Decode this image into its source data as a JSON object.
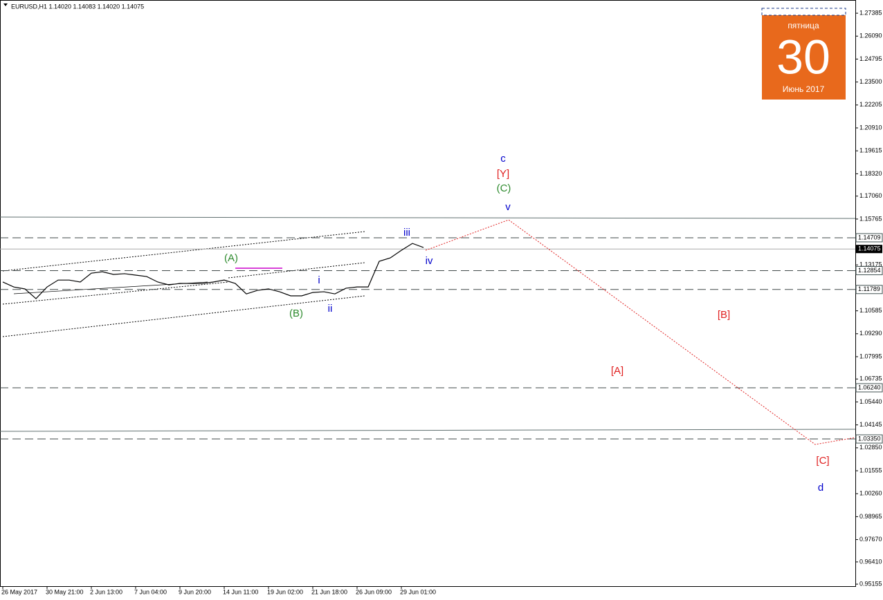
{
  "header": "EURUSD,H1  1.14020 1.14083 1.14020 1.14075",
  "calendar": {
    "weekday": "пятница",
    "day": "30",
    "month": "Июнь 2017"
  },
  "chart_data": {
    "type": "line",
    "categories": [
      "26 May 2017",
      null,
      null,
      null,
      "30 May 21:00",
      null,
      null,
      null,
      "2 Jun 13:00",
      null,
      null,
      null,
      "7 Jun 04:00",
      null,
      null,
      null,
      "9 Jun 20:00",
      null,
      null,
      null,
      "14 Jun 11:00",
      null,
      null,
      null,
      "19 Jun 02:00",
      null,
      null,
      null,
      "21 Jun 18:00",
      null,
      null,
      null,
      "26 Jun 09:00",
      null,
      null,
      null,
      "29 Jun 01:00",
      null,
      null
    ],
    "series": [
      {
        "color": "#000000",
        "values": [
          1.1221,
          1.1193,
          1.1182,
          1.1127,
          1.1193,
          1.1232,
          1.1232,
          1.1221,
          1.1271,
          1.1279,
          1.1264,
          1.1268,
          1.126,
          1.1252,
          1.1221,
          1.1205,
          1.1213,
          1.1213,
          1.1213,
          1.1221,
          1.1232,
          1.1213,
          1.1154,
          1.1174,
          1.1182,
          1.1166,
          1.1143,
          1.1143,
          1.1162,
          1.1166,
          1.1154,
          1.1186,
          1.1193,
          1.1193,
          1.1338,
          1.1357,
          1.14,
          1.1439,
          1.1416
        ]
      }
    ],
    "forecast": {
      "color": "#e02020",
      "values": [
        1.14,
        1.1572,
        1.0304,
        1.0343
      ]
    },
    "ylim": [
      0.9504,
      1.2813
    ],
    "yticks": [
      1.27385,
      {
        "value": 1.2609,
        "label": "1.26090"
      },
      1.24795,
      {
        "value": 1.235,
        "label": "1.23500"
      },
      1.22205,
      {
        "value": 1.2091,
        "label": "1.20910"
      },
      1.19615,
      {
        "value": 1.1832,
        "label": "1.18320"
      },
      {
        "value": 1.1706,
        "label": "1.17060"
      },
      1.15765,
      1.13175,
      1.10585,
      {
        "value": 1.0929,
        "label": "1.09290"
      },
      1.07995,
      1.06735,
      {
        "value": 1.0544,
        "label": "1.05440"
      },
      1.04145,
      {
        "value": 1.0285,
        "label": "1.02850"
      },
      1.01555,
      {
        "value": 1.0026,
        "label": "1.00260"
      },
      0.98965,
      {
        "value": 0.9767,
        "label": "0.97670"
      },
      {
        "value": 0.9641,
        "label": "0.96410"
      },
      0.95155
    ],
    "levels": [
      1.14709,
      1.12854,
      1.11789,
      {
        "value": 1.0624,
        "label": "1.06240"
      },
      {
        "value": 1.0335,
        "label": "1.03350"
      }
    ],
    "current_price": 1.14075,
    "annotations": [
      {
        "text": "c",
        "color": "#0000cc"
      },
      {
        "text": "[Y]",
        "color": "#e02020"
      },
      {
        "text": "(C)",
        "color": "#2e8b2e"
      },
      {
        "text": "v",
        "color": "#0000cc"
      },
      {
        "text": "iii",
        "color": "#0000cc"
      },
      {
        "text": "iv",
        "color": "#0000cc"
      },
      {
        "text": "(A)",
        "color": "#2e8b2e"
      },
      {
        "text": "(B)",
        "color": "#2e8b2e"
      },
      {
        "text": "i",
        "color": "#0000cc"
      },
      {
        "text": "ii",
        "color": "#0000cc"
      },
      {
        "text": "[A]",
        "color": "#e02020"
      },
      {
        "text": "[B]",
        "color": "#e02020"
      },
      {
        "text": "[C]",
        "color": "#e02020"
      },
      {
        "text": "d",
        "color": "#0000cc"
      }
    ]
  }
}
